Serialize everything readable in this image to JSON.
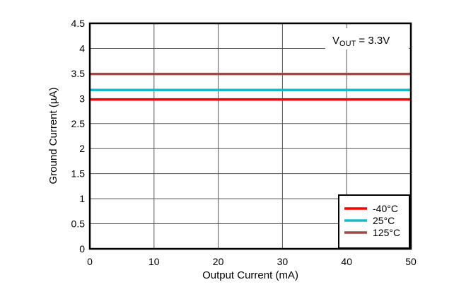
{
  "chart_data": {
    "type": "line",
    "title": "",
    "annotation": {
      "label_main": "V",
      "label_sub": "OUT",
      "label_rest": " = 3.3V"
    },
    "xlabel": "Output Current (mA)",
    "ylabel": "Ground Current (µA)",
    "xlim": [
      0,
      50
    ],
    "ylim": [
      0,
      4.5
    ],
    "xticks": [
      "0",
      "10",
      "20",
      "30",
      "40",
      "50"
    ],
    "yticks": [
      "0",
      "0.5",
      "1",
      "1.5",
      "2",
      "2.5",
      "3",
      "3.5",
      "4",
      "4.5"
    ],
    "grid": true,
    "legend_position": "lower right",
    "x": [
      0,
      50
    ],
    "series": [
      {
        "name": "-40°C",
        "color": "#ff0000",
        "values": [
          2.98,
          2.98
        ]
      },
      {
        "name": "25°C",
        "color": "#1ab8c8",
        "values": [
          3.17,
          3.17
        ]
      },
      {
        "name": "125°C",
        "color": "#a04848",
        "values": [
          3.49,
          3.49
        ]
      }
    ]
  }
}
